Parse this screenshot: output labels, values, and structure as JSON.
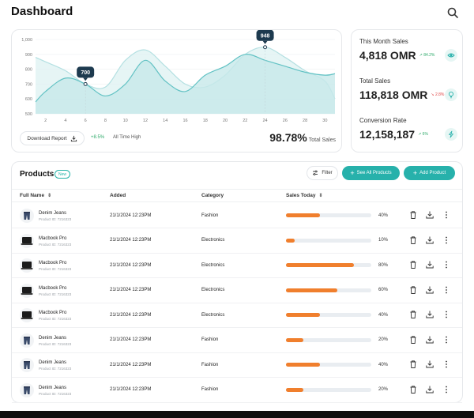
{
  "header": {
    "title": "Dashboard",
    "search_icon": "search-icon"
  },
  "chart": {
    "chart_data": {
      "type": "area",
      "x": [
        1,
        2,
        4,
        6,
        8,
        10,
        12,
        14,
        16,
        18,
        20,
        22,
        24,
        26,
        28,
        30,
        31
      ],
      "xticks": [
        2,
        4,
        6,
        8,
        10,
        12,
        14,
        16,
        18,
        20,
        22,
        24,
        26,
        28,
        30
      ],
      "yticks": [
        500,
        600,
        700,
        800,
        900,
        "1,000"
      ],
      "ylim": [
        500,
        1000
      ],
      "series": [
        {
          "values": [
            580,
            650,
            740,
            700,
            620,
            700,
            860,
            720,
            650,
            760,
            820,
            900,
            860,
            820,
            780,
            760,
            770
          ]
        },
        {
          "values": [
            880,
            850,
            790,
            700,
            680,
            860,
            930,
            820,
            700,
            680,
            760,
            900,
            948,
            880,
            790,
            720,
            600
          ]
        }
      ],
      "callouts": [
        {
          "x": 6,
          "y": 700,
          "label": "700"
        },
        {
          "x": 24,
          "y": 948,
          "label": "948"
        }
      ],
      "colors": {
        "fill": "#c7e9ea",
        "fill_back": "#ddf1f2",
        "line": "#62c2c4",
        "line_back": "#b4e0e2",
        "callout": "#1d3a4f"
      }
    },
    "download_label": "Download Report",
    "growth": "+8.5%",
    "all_time": "All Time High",
    "total_pct": "98.78%",
    "total_label": "Total Sales"
  },
  "stats": [
    {
      "label": "This Month Sales",
      "value": "4,818 OMR",
      "change": "84.2%",
      "trend": "up",
      "icon": "eye-icon"
    },
    {
      "label": "Total Sales",
      "value": "118,818 OMR",
      "change": "2.8%",
      "trend": "down",
      "icon": "bulb-icon"
    },
    {
      "label": "Conversion Rate",
      "value": "12,158,187",
      "change": "6%",
      "trend": "up",
      "icon": "bolt-icon"
    }
  ],
  "products": {
    "title": "Products",
    "badge": "New",
    "filter_label": "Filter",
    "see_all_label": "See All Products",
    "add_label": "Add Product",
    "columns": {
      "name": "Full Name",
      "added": "Added",
      "category": "Category",
      "sales": "Sales Today"
    },
    "rows": [
      {
        "name": "Denim Jeans",
        "id": "Product ID: 7216323",
        "added": "21/1/2024 12:23PM",
        "category": "Fashion",
        "sales_pct": 40,
        "sales_label": "40%",
        "thumb": "jeans"
      },
      {
        "name": "Macbook Pro",
        "id": "Product ID: 7216323",
        "added": "21/1/2024 12:23PM",
        "category": "Electronics",
        "sales_pct": 10,
        "sales_label": "10%",
        "thumb": "laptop"
      },
      {
        "name": "Macbook Pro",
        "id": "Product ID: 7216323",
        "added": "21/1/2024 12:23PM",
        "category": "Electronics",
        "sales_pct": 80,
        "sales_label": "80%",
        "thumb": "laptop"
      },
      {
        "name": "Macbook Pro",
        "id": "Product ID: 7216323",
        "added": "21/1/2024 12:23PM",
        "category": "Electronics",
        "sales_pct": 60,
        "sales_label": "60%",
        "thumb": "laptop"
      },
      {
        "name": "Macbook Pro",
        "id": "Product ID: 7216323",
        "added": "21/1/2024 12:23PM",
        "category": "Electronics",
        "sales_pct": 40,
        "sales_label": "40%",
        "thumb": "laptop"
      },
      {
        "name": "Denim Jeans",
        "id": "Product ID: 7216323",
        "added": "21/1/2024 12:23PM",
        "category": "Fashion",
        "sales_pct": 20,
        "sales_label": "20%",
        "thumb": "jeans"
      },
      {
        "name": "Denim Jeans",
        "id": "Product ID: 7216323",
        "added": "21/1/2024 12:23PM",
        "category": "Fashion",
        "sales_pct": 40,
        "sales_label": "40%",
        "thumb": "jeans"
      },
      {
        "name": "Denim Jeans",
        "id": "Product ID: 7216323",
        "added": "21/1/2024 12:23PM",
        "category": "Fashion",
        "sales_pct": 20,
        "sales_label": "20%",
        "thumb": "jeans"
      }
    ]
  }
}
